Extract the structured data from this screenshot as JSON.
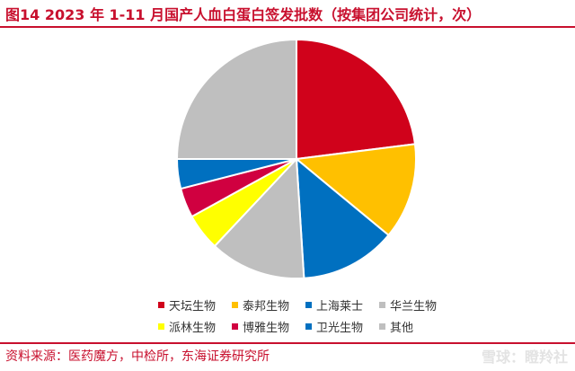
{
  "title": "图14  2023 年 1-11 月国产人血白蛋白签发批数（按集团公司统计，次）",
  "source": "资料来源：医药魔方，中检所，东海证券研究所",
  "watermark": "雪球：瞪羚社",
  "colors": {
    "accent": "#c8102e"
  },
  "chart_data": {
    "type": "pie",
    "title": "",
    "legend_position": "bottom",
    "series": [
      {
        "name": "天坛生物",
        "value": 23,
        "color": "#d0021b"
      },
      {
        "name": "泰邦生物",
        "value": 13,
        "color": "#ffc000"
      },
      {
        "name": "上海莱士",
        "value": 13,
        "color": "#0070c0"
      },
      {
        "name": "华兰生物",
        "value": 13,
        "color": "#bfbfbf"
      },
      {
        "name": "派林生物",
        "value": 5,
        "color": "#ffff00"
      },
      {
        "name": "博雅生物",
        "value": 4,
        "color": "#d00040"
      },
      {
        "name": "卫光生物",
        "value": 4,
        "color": "#0070c0"
      },
      {
        "name": "其他",
        "value": 25,
        "color": "#bfbfbf"
      }
    ]
  }
}
